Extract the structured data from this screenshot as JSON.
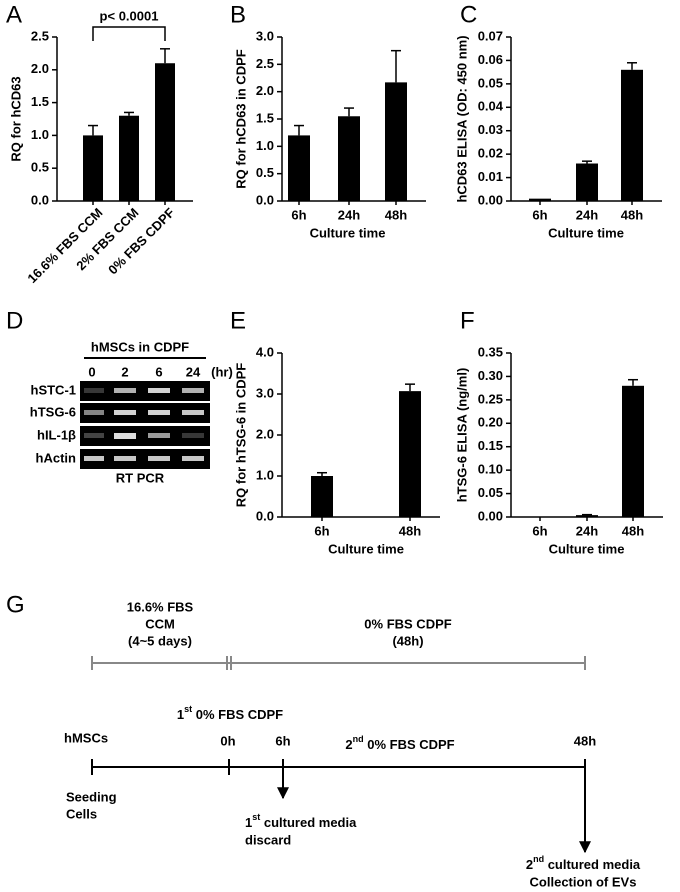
{
  "panel_labels": [
    "A",
    "B",
    "C",
    "D",
    "E",
    "F",
    "G"
  ],
  "chart_data": [
    {
      "type": "bar",
      "y_label": "RQ for hCD63",
      "annotation": "p< 0.0001",
      "categories": [
        "16.6% FBS CCM",
        "2% FBS CCM",
        "0% FBS CDPF"
      ],
      "values": [
        1.0,
        1.3,
        2.1
      ],
      "errors": [
        0.15,
        0.05,
        0.22
      ],
      "color": "#000000",
      "ylim": [
        0,
        2.5
      ],
      "yticks": [
        {
          "value": 0,
          "label": "0.0"
        },
        0.5,
        {
          "value": 1,
          "label": "1.0"
        },
        1.5,
        {
          "value": 2,
          "label": "2.0"
        },
        2.5
      ]
    },
    {
      "type": "bar",
      "y_label": "RQ for hCD63 in CDPF",
      "x_label": "Culture time",
      "categories": [
        "6h",
        "24h",
        "48h"
      ],
      "values": [
        1.2,
        1.55,
        2.17
      ],
      "errors": [
        0.18,
        0.15,
        0.58
      ],
      "color": "#000000",
      "ylim": [
        0,
        3
      ],
      "yticks": [
        {
          "value": 0,
          "label": "0.0"
        },
        0.5,
        {
          "value": 1,
          "label": "1.0"
        },
        1.5,
        {
          "value": 2,
          "label": "2.0"
        },
        2.5,
        {
          "value": 3,
          "label": "3.0"
        }
      ]
    },
    {
      "type": "bar",
      "y_label": "hCD63 ELISA (OD: 450 nm)",
      "x_label": "Culture time",
      "categories": [
        "6h",
        "24h",
        "48h"
      ],
      "values": [
        0.001,
        0.016,
        0.056
      ],
      "errors": [
        0,
        0.001,
        0.003
      ],
      "color": "#000000",
      "ylim": [
        0,
        0.07
      ],
      "yticks": [
        {
          "value": 0,
          "label": "0.00"
        },
        0.01,
        0.02,
        0.03,
        0.04,
        0.05,
        0.06,
        0.07
      ]
    },
    {
      "type": "bar",
      "y_label": "RQ for hTSG-6 in CDPF",
      "x_label": "Culture time",
      "categories": [
        "6h",
        "48h"
      ],
      "values": [
        1.0,
        3.07
      ],
      "errors": [
        0.08,
        0.17
      ],
      "color": "#000000",
      "ylim": [
        0,
        4
      ],
      "yticks": [
        {
          "value": 0,
          "label": "0.0"
        },
        {
          "value": 1,
          "label": "1.0"
        },
        {
          "value": 2,
          "label": "2.0"
        },
        {
          "value": 3,
          "label": "3.0"
        },
        {
          "value": 4,
          "label": "4.0"
        }
      ]
    },
    {
      "type": "bar",
      "y_label": "hTSG-6 ELISA (ng/ml)",
      "x_label": "Culture time",
      "categories": [
        "6h",
        "24h",
        "48h"
      ],
      "values": [
        0,
        0.004,
        0.28
      ],
      "errors": [
        0,
        0.001,
        0.013
      ],
      "color": "#000000",
      "ylim": [
        0,
        0.35
      ],
      "yticks": [
        {
          "value": 0,
          "label": "0.00"
        },
        0.05,
        {
          "value": 0.1,
          "label": "0.10"
        },
        0.15,
        {
          "value": 0.2,
          "label": "0.20"
        },
        0.25,
        {
          "value": 0.3,
          "label": "0.30"
        },
        0.35
      ]
    }
  ],
  "gel": {
    "header": "hMSCs in CDPF",
    "lanes": [
      "0",
      "2",
      "6",
      "24"
    ],
    "unit": "(hr)",
    "rows": [
      "hSTC-1",
      "hTSG-6",
      "hIL-1β",
      "hActin"
    ],
    "footer": "RT PCR"
  },
  "timeline": {
    "phase1": [
      "16.6% FBS",
      "CCM",
      "(4~5 days)"
    ],
    "phase2": [
      "0% FBS CDPF",
      "(48h)"
    ],
    "cells": "hMSCs",
    "first_media": {
      "num": "1",
      "sup": "st",
      "text": " 0% FBS CDPF"
    },
    "second_media": {
      "num": "2",
      "sup": "nd",
      "text": " 0% FBS CDPF"
    },
    "times": [
      "0h",
      "6h",
      "48h"
    ],
    "seeding": [
      "Seeding",
      "Cells"
    ],
    "discard": {
      "num": "1",
      "sup": "st",
      "text": " cultured media",
      "line2": "discard"
    },
    "collection": {
      "num": "2",
      "sup": "nd",
      "text": " cultured media",
      "line2": "Collection of EVs"
    }
  }
}
